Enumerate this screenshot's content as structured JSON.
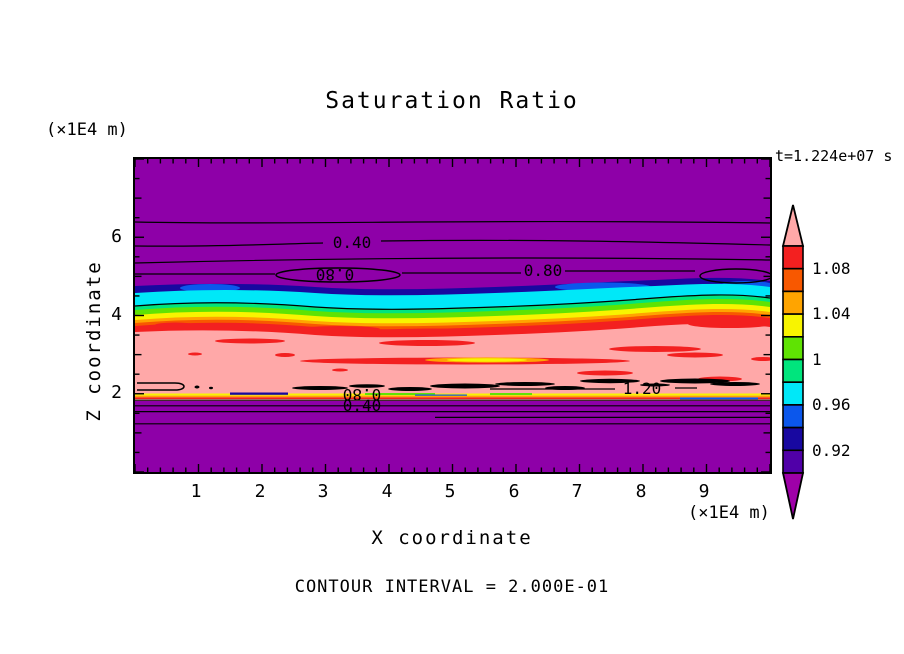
{
  "title": "Saturation Ratio",
  "time_label": "t=1.224e+07 s",
  "footer": "CONTOUR INTERVAL = 2.000E-01",
  "axes": {
    "x_label": "X coordinate",
    "x_unit": "(×1E4 m)",
    "y_label": "Z coordinate",
    "y_unit": "(×1E4 m)",
    "x_ticks": [
      "1",
      "2",
      "3",
      "4",
      "5",
      "6",
      "7",
      "8",
      "9"
    ],
    "y_ticks": [
      "6",
      "4",
      "2"
    ]
  },
  "colorbar": {
    "tick_labels": [
      "1.08",
      "1.04",
      "1",
      "0.96",
      "0.92"
    ],
    "over_color": "#FFA8A8",
    "under_color": "#9E00A8",
    "segments": [
      {
        "range": "1.08-1.10",
        "color": "#F32020"
      },
      {
        "range": "1.06-1.08",
        "color": "#F85800"
      },
      {
        "range": "1.04-1.06",
        "color": "#FFA400"
      },
      {
        "range": "1.02-1.04",
        "color": "#F8F400"
      },
      {
        "range": "1.00-1.02",
        "color": "#5FE303"
      },
      {
        "range": "0.98-1.00",
        "color": "#00E57D"
      },
      {
        "range": "0.96-0.98",
        "color": "#00E8F8"
      },
      {
        "range": "0.94-0.96",
        "color": "#0B57EC"
      },
      {
        "range": "0.92-0.94",
        "color": "#1808A0"
      },
      {
        "range": "0.90-0.92",
        "color": "#5000A8"
      }
    ]
  },
  "contour_labels": [
    {
      "text": "0.40"
    },
    {
      "text": "0.80"
    },
    {
      "text": "0.80"
    },
    {
      "text": "1.20"
    },
    {
      "text": "0.80"
    },
    {
      "text": "0.40"
    }
  ],
  "palette": {
    "background_purple": "#8E00A8",
    "pink_band": "#FFA8A8",
    "red": "#F32020",
    "orange_red": "#F85800",
    "orange": "#FFA400",
    "yellow": "#F8F400",
    "lime": "#5FE303",
    "spring_green": "#00E57D",
    "cyan": "#00E8F8",
    "blue": "#0B57EC",
    "navy": "#1808A0",
    "violet": "#5000A8"
  },
  "chart_data": {
    "type": "heatmap",
    "title": "Saturation Ratio",
    "xlabel": "X coordinate (×1E4 m)",
    "ylabel": "Z coordinate (×1E4 m)",
    "xlim": [
      0,
      10
    ],
    "ylim": [
      0,
      8
    ],
    "x_tick_labels": [
      1,
      2,
      3,
      4,
      5,
      6,
      7,
      8,
      9
    ],
    "y_tick_labels": [
      2,
      4,
      6
    ],
    "time_annotation": "t=1.224e+07 s",
    "contour_interval": 0.2,
    "labeled_contour_levels": [
      0.4,
      0.8,
      1.2
    ],
    "colorbar_range": [
      0.9,
      1.1
    ],
    "colorbar_step": 0.02,
    "colorbar_tick_labels": [
      1.08,
      1.04,
      1,
      0.96,
      0.92
    ],
    "bands": [
      {
        "z_from": 4.9,
        "z_to": 8.0,
        "saturation": "below 0.9, contour lines at 0.40 and 0.80",
        "fill": "purple (under-range)"
      },
      {
        "z_from": 4.1,
        "z_to": 4.9,
        "saturation": "0.90-1.10 rainbow transition navy>cyan>green>yellow>orange>red"
      },
      {
        "z_from": 2.1,
        "z_to": 4.1,
        "saturation": "1.10-1.20 supersaturated pink with red streaks near 1.08-1.10, 1.20 contour near z=2.2"
      },
      {
        "z_from": 0.0,
        "z_to": 2.1,
        "saturation": "below 0.9, contour lines at 0.80 and 0.40",
        "fill": "purple (under-range)"
      }
    ],
    "legend_position": "right colorbar with over/under spikes",
    "grid": false
  }
}
